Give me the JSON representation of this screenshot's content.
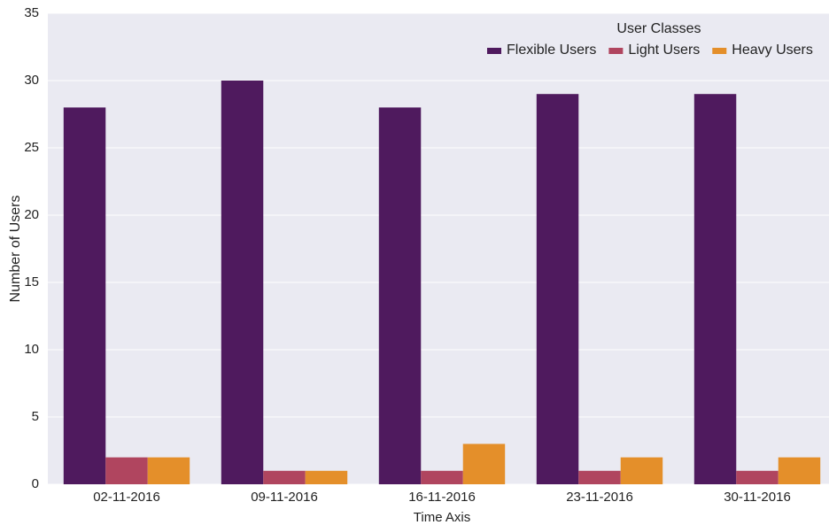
{
  "chart_data": {
    "type": "bar",
    "x_label": "Time Axis",
    "y_label": "Number of Users",
    "legend_title": "User Classes",
    "legend_position": "upper right",
    "categories": [
      "02-11-2016",
      "09-11-2016",
      "16-11-2016",
      "23-11-2016",
      "30-11-2016"
    ],
    "series": [
      {
        "name": "Flexible Users",
        "color": "#4f1a5e",
        "values": [
          28,
          30,
          28,
          29,
          29
        ]
      },
      {
        "name": "Light Users",
        "color": "#b0455f",
        "values": [
          2,
          1,
          1,
          1,
          1
        ]
      },
      {
        "name": "Heavy Users",
        "color": "#e48f2a",
        "values": [
          2,
          1,
          3,
          2,
          2
        ]
      }
    ],
    "ylim": [
      0,
      35
    ],
    "yticks": [
      0,
      5,
      10,
      15,
      20,
      25,
      30,
      35
    ],
    "grid": true
  }
}
